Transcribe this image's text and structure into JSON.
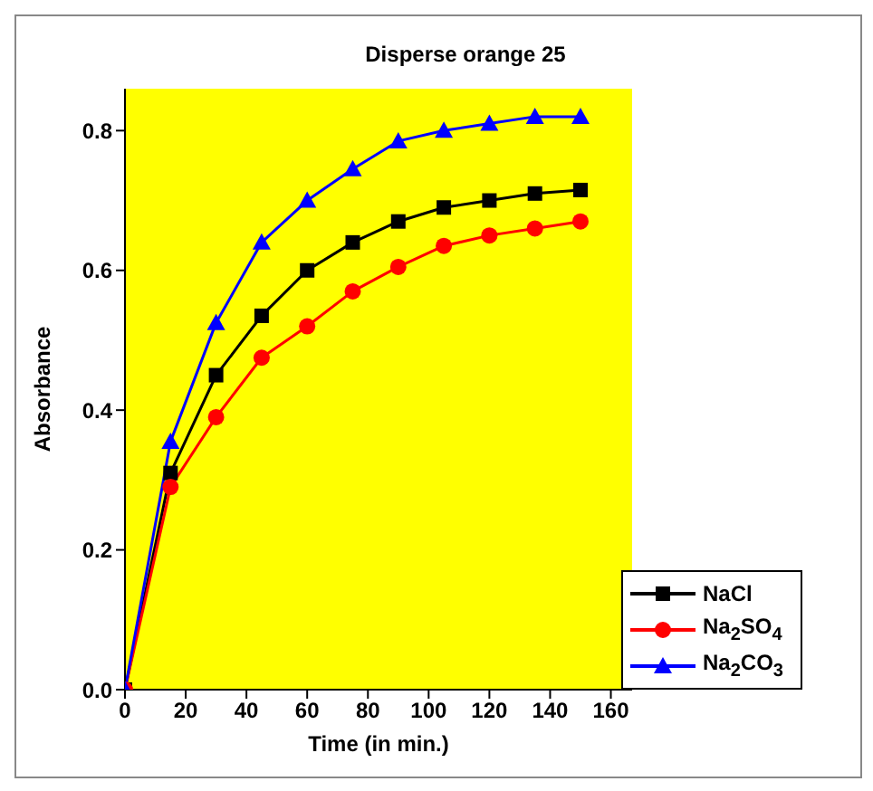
{
  "chart_data": {
    "type": "line",
    "title": "Disperse orange 25",
    "xlabel": "Time (in min.)",
    "ylabel": "Absorbance",
    "x": [
      0,
      15,
      30,
      45,
      60,
      75,
      90,
      105,
      120,
      135,
      150
    ],
    "series": [
      {
        "name": "NaCl",
        "color": "#000000",
        "marker": "square",
        "values": [
          0,
          0.31,
          0.45,
          0.535,
          0.6,
          0.64,
          0.67,
          0.69,
          0.7,
          0.71,
          0.715
        ]
      },
      {
        "name": "Na$_{2}$SO$_{4}$",
        "color": "#ff0000",
        "marker": "circle",
        "values": [
          0,
          0.29,
          0.39,
          0.475,
          0.52,
          0.57,
          0.605,
          0.635,
          0.65,
          0.66,
          0.67
        ]
      },
      {
        "name": "Na$_{2}$CO$_{3}$",
        "color": "#0000ff",
        "marker": "triangle",
        "values": [
          0,
          0.355,
          0.525,
          0.64,
          0.7,
          0.745,
          0.785,
          0.8,
          0.81,
          0.82,
          0.82
        ]
      }
    ],
    "xlim": [
      0,
      167
    ],
    "xticks": [
      0,
      20,
      40,
      60,
      80,
      100,
      120,
      140,
      160
    ],
    "ylim": [
      0,
      0.86
    ],
    "yticks": [
      {
        "value": 0,
        "label": "0.0"
      },
      {
        "value": 0.2,
        "label": "0.2"
      },
      {
        "value": 0.4,
        "label": "0.4"
      },
      {
        "value": 0.6,
        "label": "0.6"
      },
      {
        "value": 0.8,
        "label": "0.8"
      }
    ],
    "legend": "bottom right",
    "line_style": "solid"
  }
}
